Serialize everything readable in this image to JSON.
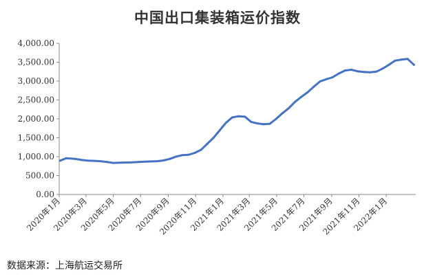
{
  "chart_data": {
    "type": "line",
    "title": "中国出口集装箱运价指数",
    "xlabel": "",
    "ylabel": "",
    "ylim": [
      0,
      4000
    ],
    "y_ticks": [
      0,
      500,
      1000,
      1500,
      2000,
      2500,
      3000,
      3500,
      4000
    ],
    "y_tick_labels": [
      "0.00",
      "500.00",
      "1,000.00",
      "1,500.00",
      "2,000.00",
      "2,500.00",
      "3,000.00",
      "3,500.00",
      "4,000.00"
    ],
    "x_tick_labels": [
      "2020年1月",
      "2020年3月",
      "2020年5月",
      "2020年7月",
      "2020年9月",
      "2020年11月",
      "2021年1月",
      "2021年3月",
      "2021年5月",
      "2021年7月",
      "2021年9月",
      "2021年11月",
      "2022年1月"
    ],
    "grid": false,
    "legend": "none",
    "line_color": "#4472c4",
    "series": [
      {
        "x": [
          "2020-01-03",
          "2020-01-17",
          "2020-02-07",
          "2020-02-21",
          "2020-03-06",
          "2020-03-20",
          "2020-04-03",
          "2020-04-17",
          "2020-05-01",
          "2020-05-15",
          "2020-05-29",
          "2020-06-12",
          "2020-06-26",
          "2020-07-10",
          "2020-07-24",
          "2020-08-07",
          "2020-08-21",
          "2020-09-04",
          "2020-09-18",
          "2020-10-02",
          "2020-10-16",
          "2020-10-30",
          "2020-11-13",
          "2020-11-27",
          "2020-12-11",
          "2020-12-25",
          "2021-01-08",
          "2021-01-22",
          "2021-02-05",
          "2021-02-19",
          "2021-03-05",
          "2021-03-19",
          "2021-04-02",
          "2021-04-16",
          "2021-04-30",
          "2021-05-14",
          "2021-05-28",
          "2021-06-11",
          "2021-06-25",
          "2021-07-09",
          "2021-07-23",
          "2021-08-06",
          "2021-08-20",
          "2021-09-03",
          "2021-09-17",
          "2021-10-01",
          "2021-10-15",
          "2021-10-29",
          "2021-11-12",
          "2021-11-26",
          "2021-12-10",
          "2021-12-24",
          "2022-01-07",
          "2022-01-21",
          "2022-02-04",
          "2022-02-18",
          "2022-03-04"
        ],
        "values": [
          895,
          960,
          940,
          910,
          895,
          890,
          880,
          860,
          835,
          840,
          845,
          850,
          860,
          870,
          875,
          880,
          900,
          940,
          1000,
          1040,
          1050,
          1100,
          1180,
          1340,
          1500,
          1700,
          1900,
          2040,
          2070,
          2060,
          1920,
          1880,
          1860,
          1870,
          2000,
          2150,
          2280,
          2450,
          2580,
          2700,
          2850,
          2990,
          3050,
          3100,
          3200,
          3280,
          3300,
          3260,
          3240,
          3230,
          3250,
          3330,
          3430,
          3540,
          3570,
          3585,
          3430
        ]
      }
    ]
  },
  "source": "数据来源：上海航运交易所"
}
